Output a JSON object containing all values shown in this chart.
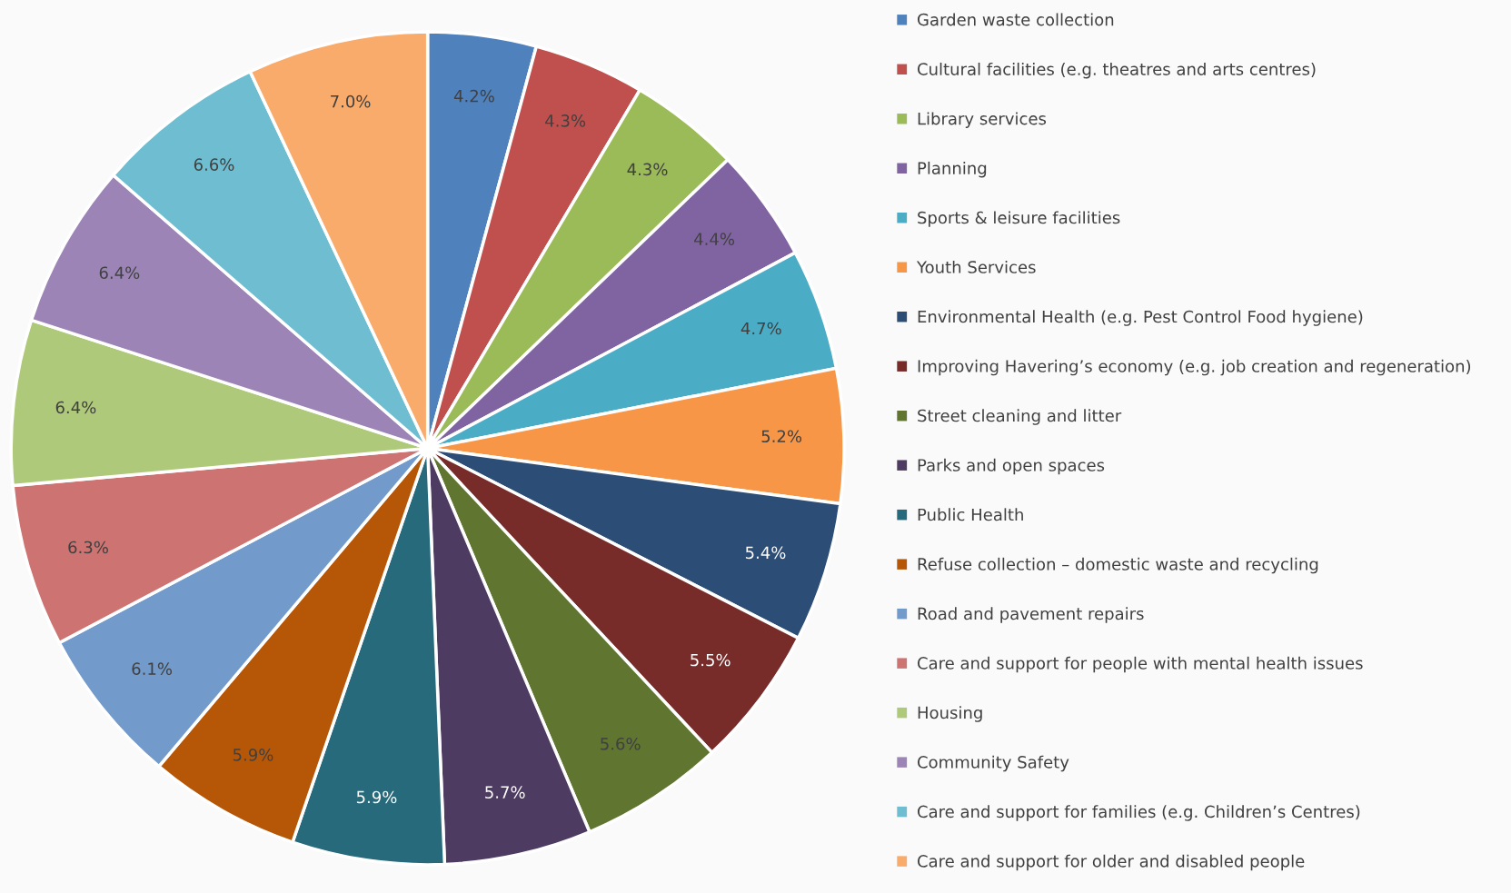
{
  "chart_data": {
    "type": "pie",
    "categories": [
      "Garden waste collection",
      "Cultural facilities (e.g. theatres and arts centres)",
      "Library services",
      "Planning",
      "Sports & leisure facilities",
      "Youth Services",
      "Environmental Health (e.g. Pest Control Food hygiene)",
      "Improving Havering’s economy (e.g. job creation and regeneration)",
      "Street cleaning and litter",
      "Parks and open spaces",
      "Public Health",
      "Refuse collection – domestic waste and recycling",
      "Road and pavement repairs",
      "Care and support for people with mental health issues",
      "Housing",
      "Community Safety",
      "Care and support for families (e.g. Children’s Centres)",
      "Care and support for older and disabled people"
    ],
    "values": [
      4.2,
      4.3,
      4.3,
      4.4,
      4.7,
      5.2,
      5.4,
      5.5,
      5.6,
      5.7,
      5.9,
      5.9,
      6.1,
      6.3,
      6.4,
      6.4,
      6.6,
      7.0
    ],
    "value_labels": [
      "4.2%",
      "4.3%",
      "4.3%",
      "4.4%",
      "4.7%",
      "5.2%",
      "5.4%",
      "5.5%",
      "5.6%",
      "5.7%",
      "5.9%",
      "5.9%",
      "6.1%",
      "6.3%",
      "6.4%",
      "6.4%",
      "6.6%",
      "7.0%"
    ],
    "colors": [
      "#4f81bd",
      "#c0504d",
      "#9bbb59",
      "#8064a2",
      "#4bacc6",
      "#f79646",
      "#2c4d75",
      "#772c2a",
      "#5f7530",
      "#4d3b62",
      "#276a7c",
      "#b65708",
      "#729aca",
      "#cd7371",
      "#afc97a",
      "#9c85b6",
      "#6fbdd1",
      "#f9ab6b"
    ],
    "legend": "right"
  }
}
